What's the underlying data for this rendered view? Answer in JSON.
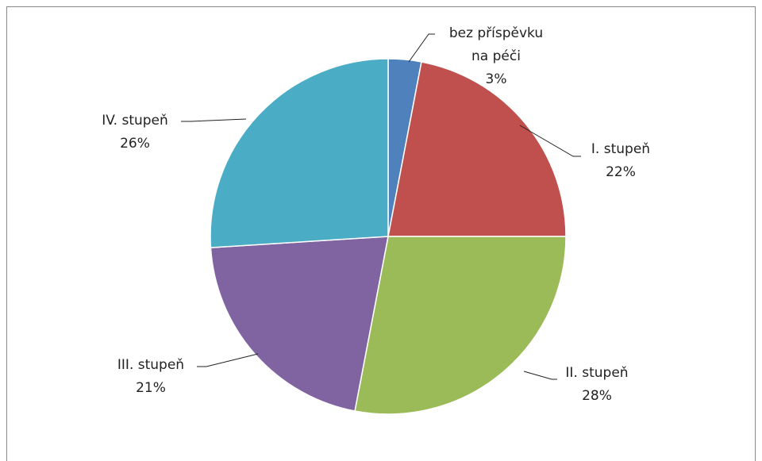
{
  "chart_data": {
    "type": "pie",
    "categories": [
      "bez příspěvku na péči",
      "I. stupeň",
      "II. stupeň",
      "III. stupeň",
      "IV. stupeň"
    ],
    "values": [
      3,
      22,
      28,
      21,
      26
    ],
    "value_labels": [
      "3%",
      "22%",
      "28%",
      "21%",
      "26%"
    ],
    "colors": [
      "#4f81bd",
      "#c0504d",
      "#9bbb59",
      "#8064a2",
      "#4bacc6"
    ]
  }
}
